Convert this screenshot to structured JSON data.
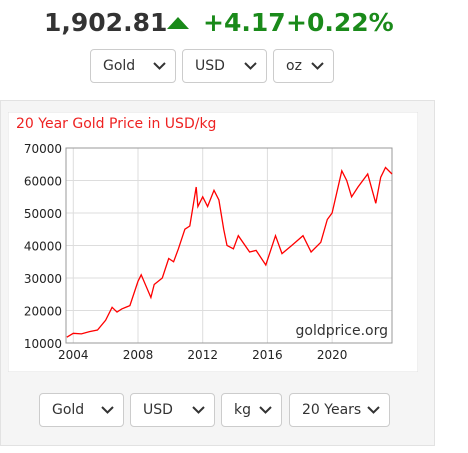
{
  "header": {
    "price": "1,902.81",
    "change": "+4.17",
    "change_pct": "+0.22%"
  },
  "top_selects": [
    "Gold",
    "USD",
    "oz"
  ],
  "chart_data": {
    "type": "line",
    "title": "20 Year Gold Price in USD/kg",
    "annotation": "goldprice.org",
    "x": [
      2003.6,
      2004.0,
      2004.5,
      2005.0,
      2005.5,
      2006.0,
      2006.4,
      2006.7,
      2007.0,
      2007.5,
      2008.0,
      2008.2,
      2008.8,
      2009.0,
      2009.5,
      2009.9,
      2010.2,
      2010.5,
      2010.9,
      2011.2,
      2011.6,
      2011.7,
      2012.0,
      2012.3,
      2012.7,
      2013.0,
      2013.3,
      2013.5,
      2013.9,
      2014.2,
      2014.9,
      2015.3,
      2015.9,
      2016.5,
      2016.9,
      2017.5,
      2018.2,
      2018.7,
      2019.3,
      2019.7,
      2020.0,
      2020.6,
      2020.9,
      2021.2,
      2021.6,
      2022.2,
      2022.7,
      2023.0,
      2023.3,
      2023.7
    ],
    "series": [
      {
        "name": "Gold",
        "color": "#ff0000",
        "values": [
          11800,
          13000,
          12800,
          13500,
          14000,
          17000,
          21000,
          19500,
          20500,
          21500,
          29000,
          31000,
          24000,
          28000,
          30000,
          36000,
          35000,
          39000,
          45000,
          46000,
          58000,
          52000,
          55000,
          52000,
          57000,
          54000,
          45000,
          40000,
          39000,
          43000,
          38000,
          38500,
          34000,
          43000,
          37500,
          40000,
          43000,
          38000,
          41000,
          48000,
          50000,
          63000,
          60000,
          55000,
          58000,
          62000,
          53000,
          61000,
          64000,
          62000
        ]
      }
    ],
    "xlim": [
      2003.55,
      2023.7
    ],
    "ylim": [
      10000,
      70000
    ],
    "xticks": [
      2004,
      2008,
      2012,
      2016,
      2020
    ],
    "yticks": [
      10000,
      20000,
      30000,
      40000,
      50000,
      60000,
      70000
    ],
    "grid": true
  },
  "bottom_selects": [
    "Gold",
    "USD",
    "kg",
    "20 Years"
  ]
}
